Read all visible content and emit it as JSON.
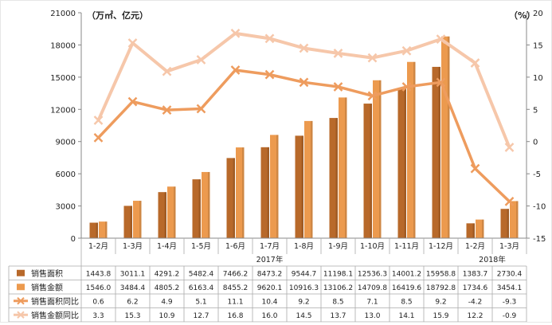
{
  "chart_data": {
    "type": "bar",
    "left_unit": "（万㎡、亿元）",
    "right_unit": "（%）",
    "left_ylim": [
      0,
      21000
    ],
    "left_ticks": [
      0,
      3000,
      6000,
      9000,
      12000,
      15000,
      18000,
      21000
    ],
    "right_ylim": [
      -15,
      20
    ],
    "right_ticks": [
      -15,
      -10,
      -5,
      0,
      5,
      10,
      15,
      20
    ],
    "categories": [
      "1-2月",
      "1-3月",
      "1-4月",
      "1-5月",
      "1-6月",
      "1-7月",
      "1-8月",
      "1-9月",
      "1-10月",
      "1-11月",
      "1-12月",
      "1-2月",
      "1-3月"
    ],
    "year_groups": [
      {
        "label": "2017年",
        "start": 0,
        "end": 10
      },
      {
        "label": "2018年",
        "start": 11,
        "end": 12
      }
    ],
    "bar_series": [
      {
        "name": "销售面积",
        "color": "#b8692a",
        "values": [
          1443.8,
          3011.1,
          4291.2,
          5482.4,
          7466.2,
          8473.2,
          9544.7,
          11198.1,
          12536.3,
          14001.2,
          15958.8,
          1383.7,
          2730.4
        ]
      },
      {
        "name": "销售金额",
        "color": "#ec9a4e",
        "values": [
          1546.0,
          3484.4,
          4805.2,
          6163.4,
          8455.2,
          9620.1,
          10916.3,
          13106.2,
          14709.8,
          16419.6,
          18792.8,
          1734.6,
          3454.1
        ]
      }
    ],
    "line_series": [
      {
        "name": "销售面积同比",
        "color": "#ee9c5e",
        "values": [
          0.6,
          6.2,
          4.9,
          5.1,
          11.1,
          10.4,
          9.2,
          8.5,
          7.1,
          8.5,
          9.2,
          -4.2,
          -9.3
        ]
      },
      {
        "name": "销售金额同比",
        "color": "#f6c7aa",
        "values": [
          3.3,
          15.3,
          10.9,
          12.7,
          16.8,
          16.0,
          14.5,
          13.7,
          13.0,
          14.1,
          15.9,
          12.2,
          -0.9
        ]
      }
    ],
    "table_display": [
      [
        "1443.8",
        "3011.1",
        "4291.2",
        "5482.4",
        "7466.2",
        "8473.2",
        "9544.7",
        "11198.1",
        "12536.3",
        "14001.2",
        "15958.8",
        "1383.7",
        "2730.4"
      ],
      [
        "1546.0",
        "3484.4",
        "4805.2",
        "6163.4",
        "8455.2",
        "9620.1",
        "10916.3",
        "13106.2",
        "14709.8",
        "16419.6",
        "18792.8",
        "1734.6",
        "3454.1"
      ],
      [
        "0.6",
        "6.2",
        "4.9",
        "5.1",
        "11.1",
        "10.4",
        "9.2",
        "8.5",
        "7.1",
        "8.5",
        "9.2",
        "-4.2",
        "-9.3"
      ],
      [
        "3.3",
        "15.3",
        "10.9",
        "12.7",
        "16.8",
        "16.0",
        "14.5",
        "13.7",
        "13.0",
        "14.1",
        "15.9",
        "12.2",
        "-0.9"
      ]
    ],
    "grid": false,
    "legend": "table-left"
  }
}
